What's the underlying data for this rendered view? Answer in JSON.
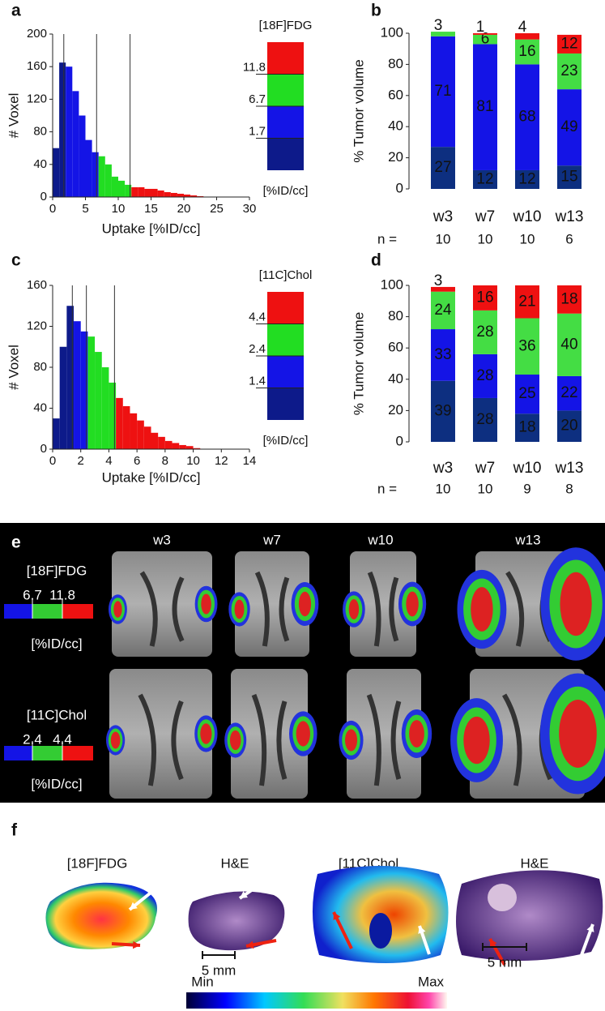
{
  "chart_data": [
    {
      "type": "histogram",
      "panel": "a",
      "xlabel": "Uptake [%ID/cc]",
      "ylabel": "# Voxel",
      "bins": [
        0,
        1,
        2,
        3,
        4,
        5,
        6,
        7,
        8,
        9,
        10,
        11,
        12,
        13,
        14,
        15,
        16,
        17,
        18,
        19,
        20,
        21,
        22,
        23
      ],
      "counts": [
        60,
        165,
        160,
        130,
        100,
        70,
        55,
        50,
        40,
        25,
        20,
        15,
        12,
        12,
        10,
        10,
        8,
        6,
        5,
        4,
        3,
        2,
        1
      ],
      "xlim": [
        0,
        30
      ],
      "xticks": [
        0,
        5,
        10,
        15,
        20,
        25,
        30
      ],
      "ylim": [
        0,
        200
      ],
      "yticks": [
        0,
        40,
        80,
        120,
        160,
        200
      ],
      "colors": [
        "#0d1a8a",
        "#1414e6",
        "#22dd22",
        "#ee1111"
      ],
      "colorbar": {
        "title": "[18F]FDG",
        "ticks": [
          1.7,
          6.7,
          11.8
        ],
        "unit": "[%ID/cc]"
      }
    },
    {
      "type": "stacked-bar",
      "panel": "b",
      "ylabel": "% Tumor volume",
      "categories": [
        "w3",
        "w7",
        "w10",
        "w13"
      ],
      "n_label": "n =",
      "n": [
        10,
        10,
        10,
        6
      ],
      "ylim": [
        0,
        100
      ],
      "yticks": [
        0,
        20,
        40,
        60,
        80,
        100
      ],
      "series": [
        {
          "color": "#0d2f80",
          "label_color": "#ffffff",
          "values": [
            27,
            12,
            12,
            15
          ]
        },
        {
          "color": "#1414e6",
          "label_color": "#ffffff",
          "values": [
            71,
            81,
            68,
            49
          ]
        },
        {
          "color": "#44dd44",
          "label_color": "#111111",
          "values": [
            3,
            6,
            16,
            23
          ]
        },
        {
          "color": "#ee1111",
          "label_color": "#111111",
          "values": [
            null,
            1,
            4,
            12
          ]
        }
      ]
    },
    {
      "type": "histogram",
      "panel": "c",
      "xlabel": "Uptake [%ID/cc]",
      "ylabel": "# Voxel",
      "bins": [
        0,
        0.5,
        1,
        1.5,
        2,
        2.5,
        3,
        3.5,
        4,
        4.5,
        5,
        5.5,
        6,
        6.5,
        7,
        7.5,
        8,
        8.5,
        9,
        9.5,
        10,
        10.5
      ],
      "counts": [
        30,
        100,
        140,
        125,
        115,
        110,
        95,
        80,
        65,
        50,
        42,
        35,
        28,
        22,
        16,
        12,
        8,
        6,
        4,
        3,
        1
      ],
      "xlim": [
        0,
        14
      ],
      "xticks": [
        0,
        2,
        4,
        6,
        8,
        10,
        12,
        14
      ],
      "ylim": [
        0,
        160
      ],
      "yticks": [
        0,
        40,
        80,
        120,
        160
      ],
      "colors": [
        "#0d1a8a",
        "#1414e6",
        "#22dd22",
        "#ee1111"
      ],
      "colorbar": {
        "title": "[11C]Chol",
        "ticks": [
          1.4,
          2.4,
          4.4
        ],
        "unit": "[%ID/cc]"
      }
    },
    {
      "type": "stacked-bar",
      "panel": "d",
      "ylabel": "% Tumor volume",
      "categories": [
        "w3",
        "w7",
        "w10",
        "w13"
      ],
      "n_label": "n =",
      "n": [
        10,
        10,
        9,
        8
      ],
      "ylim": [
        0,
        100
      ],
      "yticks": [
        0,
        20,
        40,
        60,
        80,
        100
      ],
      "series": [
        {
          "color": "#0d2f80",
          "label_color": "#ffffff",
          "values": [
            39,
            28,
            18,
            20
          ]
        },
        {
          "color": "#1414e6",
          "label_color": "#ffffff",
          "values": [
            33,
            28,
            25,
            22
          ]
        },
        {
          "color": "#44dd44",
          "label_color": "#111111",
          "values": [
            24,
            28,
            36,
            40
          ]
        },
        {
          "color": "#ee1111",
          "label_color": "#111111",
          "values": [
            3,
            16,
            21,
            18
          ]
        }
      ]
    }
  ],
  "panel_e": {
    "label": "e",
    "columns": [
      "w3",
      "w7",
      "w10",
      "w13"
    ],
    "rows": [
      {
        "tracer": "[18F]FDG",
        "thresholds": [
          "6.7",
          "11.8"
        ],
        "unit": "[%ID/cc]"
      },
      {
        "tracer": "[11C]Chol",
        "thresholds": [
          "2.4",
          "4.4"
        ],
        "unit": "[%ID/cc]"
      }
    ]
  },
  "panel_f": {
    "label": "f",
    "images": [
      "[18F]FDG",
      "H&E",
      "[11C]Chol",
      "H&E"
    ],
    "scale": "5 mm",
    "colorbar": {
      "min": "Min",
      "max": "Max"
    }
  }
}
